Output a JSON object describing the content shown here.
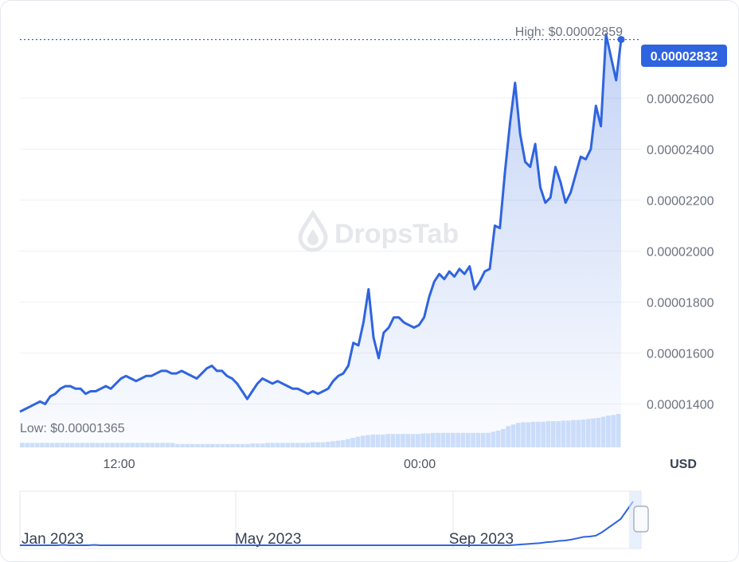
{
  "chart_data": {
    "type": "line",
    "watermark": "DropsTab",
    "currency_label": "USD",
    "high_label": "High: $0.00002859",
    "low_label": "Low: $0.00001365",
    "current_price_label": "0.00002832",
    "y_ticks": [
      "0.00002600",
      "0.00002400",
      "0.00002200",
      "0.00002000",
      "0.00001800",
      "0.00001600",
      "0.00001400"
    ],
    "y_tick_values": [
      2.6e-05,
      2.4e-05,
      2.2e-05,
      2e-05,
      1.8e-05,
      1.6e-05,
      1.4e-05
    ],
    "ylim": [
      1.23e-05,
      2.86e-05
    ],
    "x_tick_labels": [
      "12:00",
      "00:00"
    ],
    "x_tick_positions": [
      0.165,
      0.665
    ],
    "series": [
      {
        "values": [
          1.37e-05,
          1.38e-05,
          1.39e-05,
          1.4e-05,
          1.41e-05,
          1.4e-05,
          1.43e-05,
          1.44e-05,
          1.46e-05,
          1.47e-05,
          1.47e-05,
          1.46e-05,
          1.46e-05,
          1.44e-05,
          1.45e-05,
          1.45e-05,
          1.46e-05,
          1.47e-05,
          1.46e-05,
          1.48e-05,
          1.5e-05,
          1.51e-05,
          1.5e-05,
          1.49e-05,
          1.5e-05,
          1.51e-05,
          1.51e-05,
          1.52e-05,
          1.53e-05,
          1.53e-05,
          1.52e-05,
          1.52e-05,
          1.53e-05,
          1.52e-05,
          1.51e-05,
          1.5e-05,
          1.52e-05,
          1.54e-05,
          1.55e-05,
          1.53e-05,
          1.53e-05,
          1.51e-05,
          1.5e-05,
          1.48e-05,
          1.45e-05,
          1.42e-05,
          1.45e-05,
          1.48e-05,
          1.5e-05,
          1.49e-05,
          1.48e-05,
          1.49e-05,
          1.48e-05,
          1.47e-05,
          1.46e-05,
          1.46e-05,
          1.45e-05,
          1.44e-05,
          1.45e-05,
          1.44e-05,
          1.45e-05,
          1.46e-05,
          1.49e-05,
          1.51e-05,
          1.52e-05,
          1.55e-05,
          1.64e-05,
          1.63e-05,
          1.72e-05,
          1.85e-05,
          1.66e-05,
          1.58e-05,
          1.68e-05,
          1.7e-05,
          1.74e-05,
          1.74e-05,
          1.72e-05,
          1.71e-05,
          1.7e-05,
          1.71e-05,
          1.74e-05,
          1.82e-05,
          1.88e-05,
          1.91e-05,
          1.89e-05,
          1.92e-05,
          1.9e-05,
          1.93e-05,
          1.91e-05,
          1.94e-05,
          1.85e-05,
          1.88e-05,
          1.92e-05,
          1.93e-05,
          2.1e-05,
          2.09e-05,
          2.31e-05,
          2.5e-05,
          2.66e-05,
          2.46e-05,
          2.35e-05,
          2.33e-05,
          2.42e-05,
          2.25e-05,
          2.19e-05,
          2.21e-05,
          2.33e-05,
          2.27e-05,
          2.19e-05,
          2.23e-05,
          2.3e-05,
          2.37e-05,
          2.36e-05,
          2.4e-05,
          2.57e-05,
          2.49e-05,
          2.85e-05,
          2.76e-05,
          2.67e-05,
          2.83e-05
        ],
        "volume": [
          0.08,
          0.08,
          0.08,
          0.08,
          0.08,
          0.08,
          0.08,
          0.08,
          0.08,
          0.08,
          0.08,
          0.08,
          0.08,
          0.08,
          0.08,
          0.08,
          0.08,
          0.08,
          0.08,
          0.08,
          0.08,
          0.08,
          0.08,
          0.08,
          0.08,
          0.08,
          0.08,
          0.08,
          0.08,
          0.08,
          0.08,
          0.06,
          0.06,
          0.06,
          0.06,
          0.06,
          0.06,
          0.06,
          0.06,
          0.06,
          0.06,
          0.06,
          0.06,
          0.06,
          0.06,
          0.06,
          0.07,
          0.07,
          0.07,
          0.08,
          0.08,
          0.08,
          0.08,
          0.08,
          0.08,
          0.08,
          0.08,
          0.08,
          0.09,
          0.09,
          0.09,
          0.1,
          0.11,
          0.12,
          0.13,
          0.15,
          0.17,
          0.19,
          0.21,
          0.22,
          0.23,
          0.23,
          0.23,
          0.24,
          0.24,
          0.24,
          0.24,
          0.24,
          0.24,
          0.24,
          0.25,
          0.25,
          0.26,
          0.26,
          0.26,
          0.26,
          0.26,
          0.26,
          0.26,
          0.26,
          0.26,
          0.26,
          0.26,
          0.26,
          0.28,
          0.3,
          0.33,
          0.38,
          0.41,
          0.44,
          0.45,
          0.45,
          0.46,
          0.46,
          0.46,
          0.47,
          0.47,
          0.47,
          0.48,
          0.48,
          0.49,
          0.49,
          0.5,
          0.51,
          0.52,
          0.53,
          0.55,
          0.57,
          0.58,
          0.6
        ]
      }
    ]
  },
  "navigator": {
    "labels": [
      "Jan 2023",
      "May 2023",
      "Sep 2023"
    ],
    "label_positions": [
      0.0,
      0.348,
      0.697
    ],
    "values": [
      0.0,
      0.0,
      0.0,
      0.0,
      0.0,
      0.0,
      0.0,
      0.01,
      0.0,
      0.0,
      0.0,
      0.0,
      0.01,
      0.0,
      0.0,
      0.0,
      0.0,
      0.0,
      0.0,
      0.0,
      0.0,
      0.0,
      0.0,
      0.0,
      0.0,
      0.0,
      0.0,
      0.0,
      0.0,
      0.0,
      0.0,
      0.0,
      0.0,
      0.0,
      0.0,
      0.0,
      0.0,
      0.0,
      0.0,
      0.0,
      0.0,
      0.0,
      0.0,
      0.0,
      0.0,
      0.0,
      0.0,
      0.0,
      0.0,
      0.0,
      0.0,
      0.0,
      0.0,
      0.0,
      0.0,
      0.0,
      0.0,
      0.0,
      0.0,
      0.0,
      0.0,
      0.0,
      0.0,
      0.0,
      0.0,
      0.0,
      0.0,
      0.0,
      0.0,
      0.0,
      0.0,
      0.0,
      0.0,
      0.0,
      0.0,
      0.0,
      0.0,
      0.0,
      0.0,
      0.0,
      0.01,
      0.02,
      0.03,
      0.04,
      0.05,
      0.07,
      0.08,
      0.1,
      0.11,
      0.13,
      0.16,
      0.19,
      0.2,
      0.22,
      0.3,
      0.4,
      0.5,
      0.6,
      0.8,
      1.0
    ]
  }
}
